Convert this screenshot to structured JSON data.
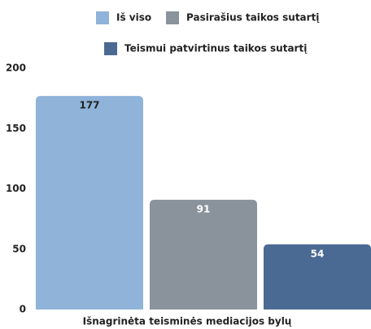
{
  "chart_data": {
    "type": "bar",
    "categories": [
      "Išnagrinėta teisminės mediacijos bylų"
    ],
    "series": [
      {
        "name": "Iš viso",
        "color": "#8fb3d9",
        "values": [
          177
        ]
      },
      {
        "name": "Pasirašius taikos sutartį",
        "color": "#8a939c",
        "values": [
          91
        ]
      },
      {
        "name": "Teismui patvirtinus taikos sutartį",
        "color": "#4b6a93",
        "values": [
          54
        ]
      }
    ],
    "ylim": [
      0,
      200
    ],
    "yticks": [
      0,
      50,
      100,
      150,
      200
    ],
    "grid": false
  }
}
